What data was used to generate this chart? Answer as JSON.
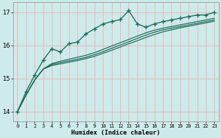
{
  "xlabel": "Humidex (Indice chaleur)",
  "bg_color": "#ceeaea",
  "grid_color": "#e8b8b8",
  "line_color": "#1a6b5a",
  "xlim": [
    -0.5,
    23.5
  ],
  "ylim": [
    13.7,
    17.3
  ],
  "xticks": [
    0,
    1,
    2,
    3,
    4,
    5,
    6,
    7,
    8,
    9,
    10,
    11,
    12,
    13,
    14,
    15,
    16,
    17,
    18,
    19,
    20,
    21,
    22,
    23
  ],
  "yticks": [
    14,
    15,
    16,
    17
  ],
  "series_smooth": [
    [
      14.0,
      14.5,
      14.95,
      15.28,
      15.45,
      15.52,
      15.58,
      15.64,
      15.7,
      15.78,
      15.88,
      15.98,
      16.08,
      16.18,
      16.28,
      16.38,
      16.46,
      16.52,
      16.57,
      16.62,
      16.67,
      16.72,
      16.77,
      16.82
    ],
    [
      14.0,
      14.5,
      14.95,
      15.28,
      15.42,
      15.48,
      15.53,
      15.58,
      15.64,
      15.72,
      15.81,
      15.91,
      16.01,
      16.11,
      16.21,
      16.31,
      16.4,
      16.47,
      16.52,
      16.57,
      16.62,
      16.67,
      16.72,
      16.77
    ],
    [
      14.0,
      14.5,
      14.95,
      15.28,
      15.39,
      15.44,
      15.49,
      15.54,
      15.6,
      15.67,
      15.76,
      15.85,
      15.95,
      16.05,
      16.14,
      16.24,
      16.33,
      16.41,
      16.47,
      16.53,
      16.58,
      16.63,
      16.68,
      16.73
    ]
  ],
  "series_main": {
    "x": [
      0,
      1,
      2,
      3,
      4,
      5,
      6,
      7,
      8,
      9,
      10,
      11,
      12,
      13,
      14,
      15,
      16,
      17,
      18,
      19,
      20,
      21,
      22,
      23
    ],
    "y": [
      14.0,
      14.6,
      15.1,
      15.55,
      15.9,
      15.8,
      16.05,
      16.1,
      16.35,
      16.5,
      16.65,
      16.72,
      16.78,
      17.05,
      16.65,
      16.55,
      16.65,
      16.72,
      16.77,
      16.82,
      16.87,
      16.92,
      16.92,
      17.0
    ]
  }
}
